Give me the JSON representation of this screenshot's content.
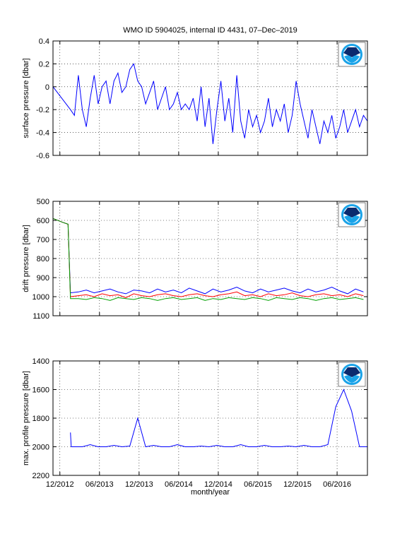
{
  "chart_data": [
    {
      "type": "line",
      "title": "WMO ID 5904025, internal ID 4431, 07–Dec–2019",
      "ylabel": "surface pressure [dbar]",
      "xlim": [
        2012.83,
        2016.8
      ],
      "xticks": [
        2012.917,
        2013.417,
        2013.917,
        2014.417,
        2014.917,
        2015.417,
        2015.917,
        2016.417
      ],
      "ylim": [
        -0.6,
        0.4
      ],
      "yticks": [
        -0.6,
        -0.4,
        -0.2,
        0,
        0.2,
        0.4
      ],
      "grid": true,
      "yreverse": false,
      "series": [
        {
          "color": "#0000ff",
          "x": [
            2012.83,
            2013.05,
            2013.1,
            2013.15,
            2013.2,
            2013.25,
            2013.3,
            2013.35,
            2013.4,
            2013.45,
            2013.5,
            2013.55,
            2013.6,
            2013.65,
            2013.7,
            2013.75,
            2013.8,
            2013.85,
            2013.9,
            2013.95,
            2014.0,
            2014.05,
            2014.1,
            2014.15,
            2014.2,
            2014.25,
            2014.3,
            2014.35,
            2014.4,
            2014.45,
            2014.5,
            2014.55,
            2014.6,
            2014.65,
            2014.7,
            2014.75,
            2014.8,
            2014.85,
            2014.9,
            2014.95,
            2015.0,
            2015.05,
            2015.1,
            2015.15,
            2015.2,
            2015.25,
            2015.3,
            2015.35,
            2015.4,
            2015.45,
            2015.5,
            2015.55,
            2015.6,
            2015.65,
            2015.7,
            2015.75,
            2015.8,
            2015.85,
            2015.9,
            2015.95,
            2016.0,
            2016.05,
            2016.1,
            2016.15,
            2016.2,
            2016.25,
            2016.3,
            2016.35,
            2016.4,
            2016.45,
            2016.5,
            2016.55,
            2016.6,
            2016.65,
            2016.7,
            2016.75,
            2016.8
          ],
          "values": [
            0,
            -0.2,
            -0.25,
            0.1,
            -0.2,
            -0.35,
            -0.1,
            0.1,
            -0.15,
            0.0,
            0.05,
            -0.15,
            0.05,
            0.12,
            -0.05,
            0.0,
            0.15,
            0.2,
            0.05,
            0.0,
            -0.15,
            -0.05,
            0.05,
            -0.2,
            -0.1,
            0.0,
            -0.2,
            -0.15,
            -0.05,
            -0.2,
            -0.15,
            -0.2,
            -0.1,
            -0.3,
            0.0,
            -0.35,
            -0.1,
            -0.5,
            -0.2,
            0.05,
            -0.3,
            -0.1,
            -0.4,
            0.1,
            -0.3,
            -0.45,
            -0.2,
            -0.35,
            -0.25,
            -0.4,
            -0.3,
            -0.1,
            -0.35,
            -0.2,
            -0.3,
            -0.15,
            -0.4,
            -0.25,
            0.05,
            -0.15,
            -0.3,
            -0.45,
            -0.2,
            -0.35,
            -0.5,
            -0.3,
            -0.4,
            -0.25,
            -0.45,
            -0.35,
            -0.2,
            -0.4,
            -0.3,
            -0.2,
            -0.35,
            -0.25,
            -0.3
          ]
        }
      ]
    },
    {
      "type": "line",
      "ylabel": "drift pressure [dbar]",
      "xlim": [
        2012.83,
        2016.8
      ],
      "xticks": [
        2012.917,
        2013.417,
        2013.917,
        2014.417,
        2014.917,
        2015.417,
        2015.917,
        2016.417
      ],
      "ylim": [
        500,
        1100
      ],
      "yticks": [
        500,
        600,
        700,
        800,
        900,
        1000,
        1100
      ],
      "grid": true,
      "yreverse": true,
      "series": [
        {
          "color": "#0000ff",
          "x": [
            2012.83,
            2012.95,
            2013.02,
            2013.05,
            2013.15,
            2013.25,
            2013.35,
            2013.45,
            2013.55,
            2013.65,
            2013.75,
            2013.85,
            2013.95,
            2014.05,
            2014.15,
            2014.25,
            2014.35,
            2014.45,
            2014.55,
            2014.65,
            2014.75,
            2014.85,
            2014.95,
            2015.05,
            2015.15,
            2015.25,
            2015.35,
            2015.45,
            2015.55,
            2015.65,
            2015.75,
            2015.85,
            2015.95,
            2016.05,
            2016.15,
            2016.25,
            2016.35,
            2016.45,
            2016.55,
            2016.65,
            2016.75
          ],
          "values": [
            590,
            610,
            620,
            980,
            975,
            965,
            980,
            970,
            960,
            975,
            985,
            965,
            970,
            980,
            960,
            975,
            965,
            980,
            955,
            970,
            985,
            960,
            975,
            965,
            950,
            970,
            980,
            960,
            975,
            965,
            955,
            970,
            980,
            960,
            975,
            965,
            950,
            970,
            985,
            960,
            975
          ]
        },
        {
          "color": "#ff0000",
          "x": [
            2012.83,
            2012.95,
            2013.02,
            2013.05,
            2013.15,
            2013.25,
            2013.35,
            2013.45,
            2013.55,
            2013.65,
            2013.75,
            2013.85,
            2013.95,
            2014.05,
            2014.15,
            2014.25,
            2014.35,
            2014.45,
            2014.55,
            2014.65,
            2014.75,
            2014.85,
            2014.95,
            2015.05,
            2015.15,
            2015.25,
            2015.35,
            2015.45,
            2015.55,
            2015.65,
            2015.75,
            2015.85,
            2015.95,
            2016.05,
            2016.15,
            2016.25,
            2016.35,
            2016.45,
            2016.55,
            2016.65,
            2016.75
          ],
          "values": [
            590,
            610,
            620,
            1000,
            995,
            990,
            1000,
            985,
            995,
            990,
            1005,
            985,
            995,
            1000,
            990,
            985,
            995,
            1000,
            990,
            985,
            995,
            1000,
            990,
            985,
            975,
            995,
            990,
            1000,
            985,
            995,
            990,
            980,
            995,
            1000,
            990,
            985,
            995,
            990,
            1000,
            985,
            995
          ]
        },
        {
          "color": "#00a000",
          "x": [
            2012.83,
            2012.95,
            2013.02,
            2013.05,
            2013.15,
            2013.25,
            2013.35,
            2013.45,
            2013.55,
            2013.65,
            2013.75,
            2013.85,
            2013.95,
            2014.05,
            2014.15,
            2014.25,
            2014.35,
            2014.45,
            2014.55,
            2014.65,
            2014.75,
            2014.85,
            2014.95,
            2015.05,
            2015.15,
            2015.25,
            2015.35,
            2015.45,
            2015.55,
            2015.65,
            2015.75,
            2015.85,
            2015.95,
            2016.05,
            2016.15,
            2016.25,
            2016.35,
            2016.45,
            2016.55,
            2016.65,
            2016.75
          ],
          "values": [
            590,
            610,
            620,
            1010,
            1010,
            1015,
            1005,
            1010,
            1020,
            1005,
            1010,
            1015,
            1005,
            1010,
            1020,
            1010,
            1005,
            1015,
            1010,
            1005,
            1020,
            1010,
            1015,
            1005,
            1010,
            1015,
            1005,
            1010,
            1020,
            1005,
            1010,
            1015,
            1005,
            1010,
            1020,
            1010,
            1005,
            1015,
            1010,
            1005,
            1015
          ]
        }
      ]
    },
    {
      "type": "line",
      "ylabel": "max. profile pressure [dbar]",
      "xlabel": "month/year",
      "xlim": [
        2012.83,
        2016.8
      ],
      "xticks": [
        {
          "value": 2012.917,
          "label": "12/2012"
        },
        {
          "value": 2013.417,
          "label": "06/2013"
        },
        {
          "value": 2013.917,
          "label": "12/2013"
        },
        {
          "value": 2014.417,
          "label": "06/2014"
        },
        {
          "value": 2014.917,
          "label": "12/2014"
        },
        {
          "value": 2015.417,
          "label": "06/2015"
        },
        {
          "value": 2015.917,
          "label": "12/2015"
        },
        {
          "value": 2016.417,
          "label": "06/2016"
        }
      ],
      "ylim": [
        1400,
        2200
      ],
      "yticks": [
        1400,
        1600,
        1800,
        2000,
        2200
      ],
      "grid": true,
      "yreverse": true,
      "series": [
        {
          "color": "#0000ff",
          "x": [
            2013.05,
            2013.06,
            2013.1,
            2013.2,
            2013.3,
            2013.4,
            2013.5,
            2013.6,
            2013.7,
            2013.8,
            2013.9,
            2014.0,
            2014.1,
            2014.2,
            2014.3,
            2014.4,
            2014.5,
            2014.6,
            2014.7,
            2014.8,
            2014.9,
            2015.0,
            2015.1,
            2015.2,
            2015.3,
            2015.4,
            2015.5,
            2015.6,
            2015.7,
            2015.8,
            2015.9,
            2016.0,
            2016.1,
            2016.2,
            2016.3,
            2016.4,
            2016.5,
            2016.6,
            2016.7,
            2016.8
          ],
          "values": [
            1900,
            2000,
            2000,
            2000,
            1985,
            2000,
            2000,
            1990,
            2000,
            1995,
            1800,
            2000,
            1990,
            2000,
            2000,
            1985,
            2000,
            2000,
            1995,
            2000,
            1990,
            2000,
            2000,
            1985,
            2000,
            2000,
            1990,
            2000,
            2000,
            1995,
            2000,
            1990,
            2000,
            2000,
            1985,
            1720,
            1600,
            1750,
            2000,
            2000
          ]
        }
      ]
    }
  ]
}
